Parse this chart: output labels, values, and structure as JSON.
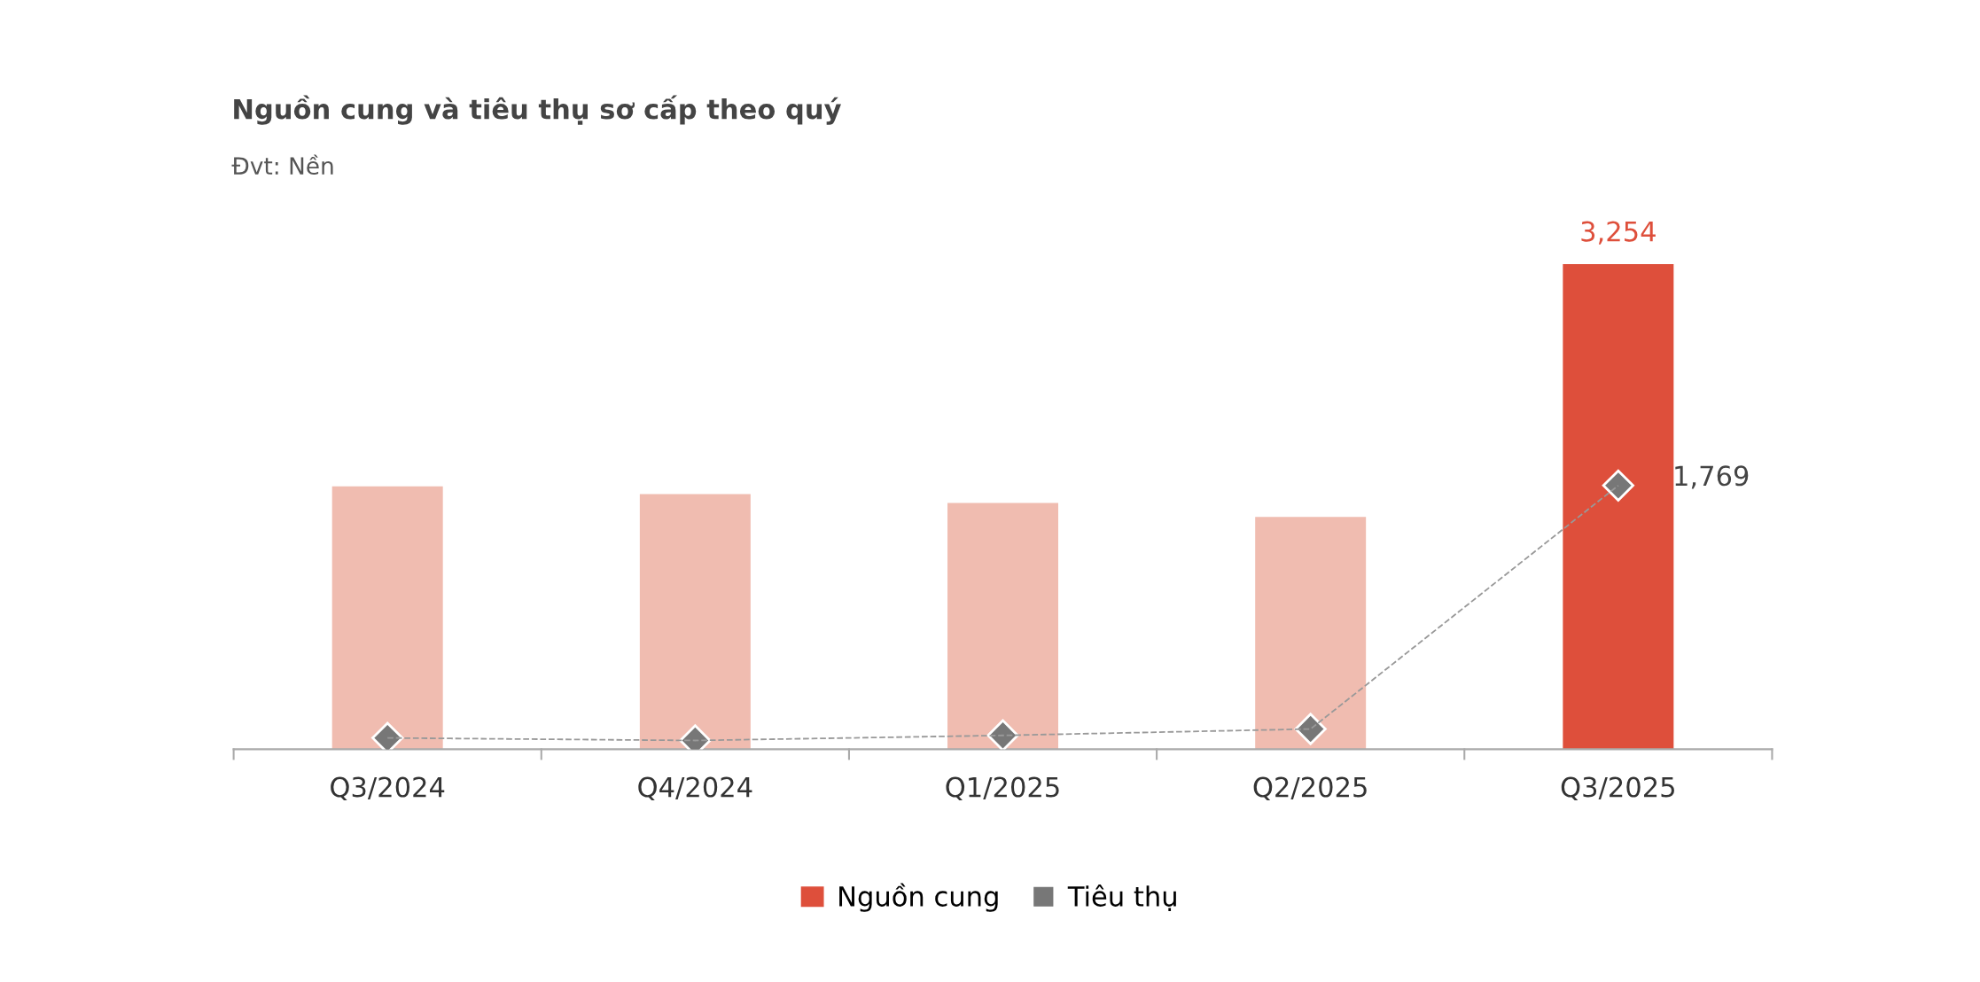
{
  "chart_data": {
    "type": "bar",
    "title": "Nguồn cung và tiêu thụ sơ cấp theo quý",
    "subtitle": "Đvt: Nền",
    "categories": [
      "Q3/2024",
      "Q4/2024",
      "Q1/2025",
      "Q2/2025",
      "Q3/2025"
    ],
    "series": [
      {
        "name": "Nguồn cung",
        "color": "#de4f3b",
        "colors": [
          "#f0bcb0",
          "#f0bcb0",
          "#f0bcb0",
          "#f0bcb0",
          "#de4f3b"
        ],
        "values": [
          1763,
          1712,
          1652,
          1559,
          3254
        ],
        "value_labels": [
          null,
          null,
          null,
          null,
          "3,254"
        ]
      },
      {
        "name": "Tiêu thụ",
        "type": "line",
        "color": "#777777",
        "values": [
          76,
          59,
          93,
          136,
          1769
        ],
        "value_labels": [
          null,
          null,
          null,
          null,
          "1,769"
        ],
        "marker": "diamond",
        "line_style": "dashed"
      }
    ],
    "grid": false,
    "legend": "bottom"
  }
}
